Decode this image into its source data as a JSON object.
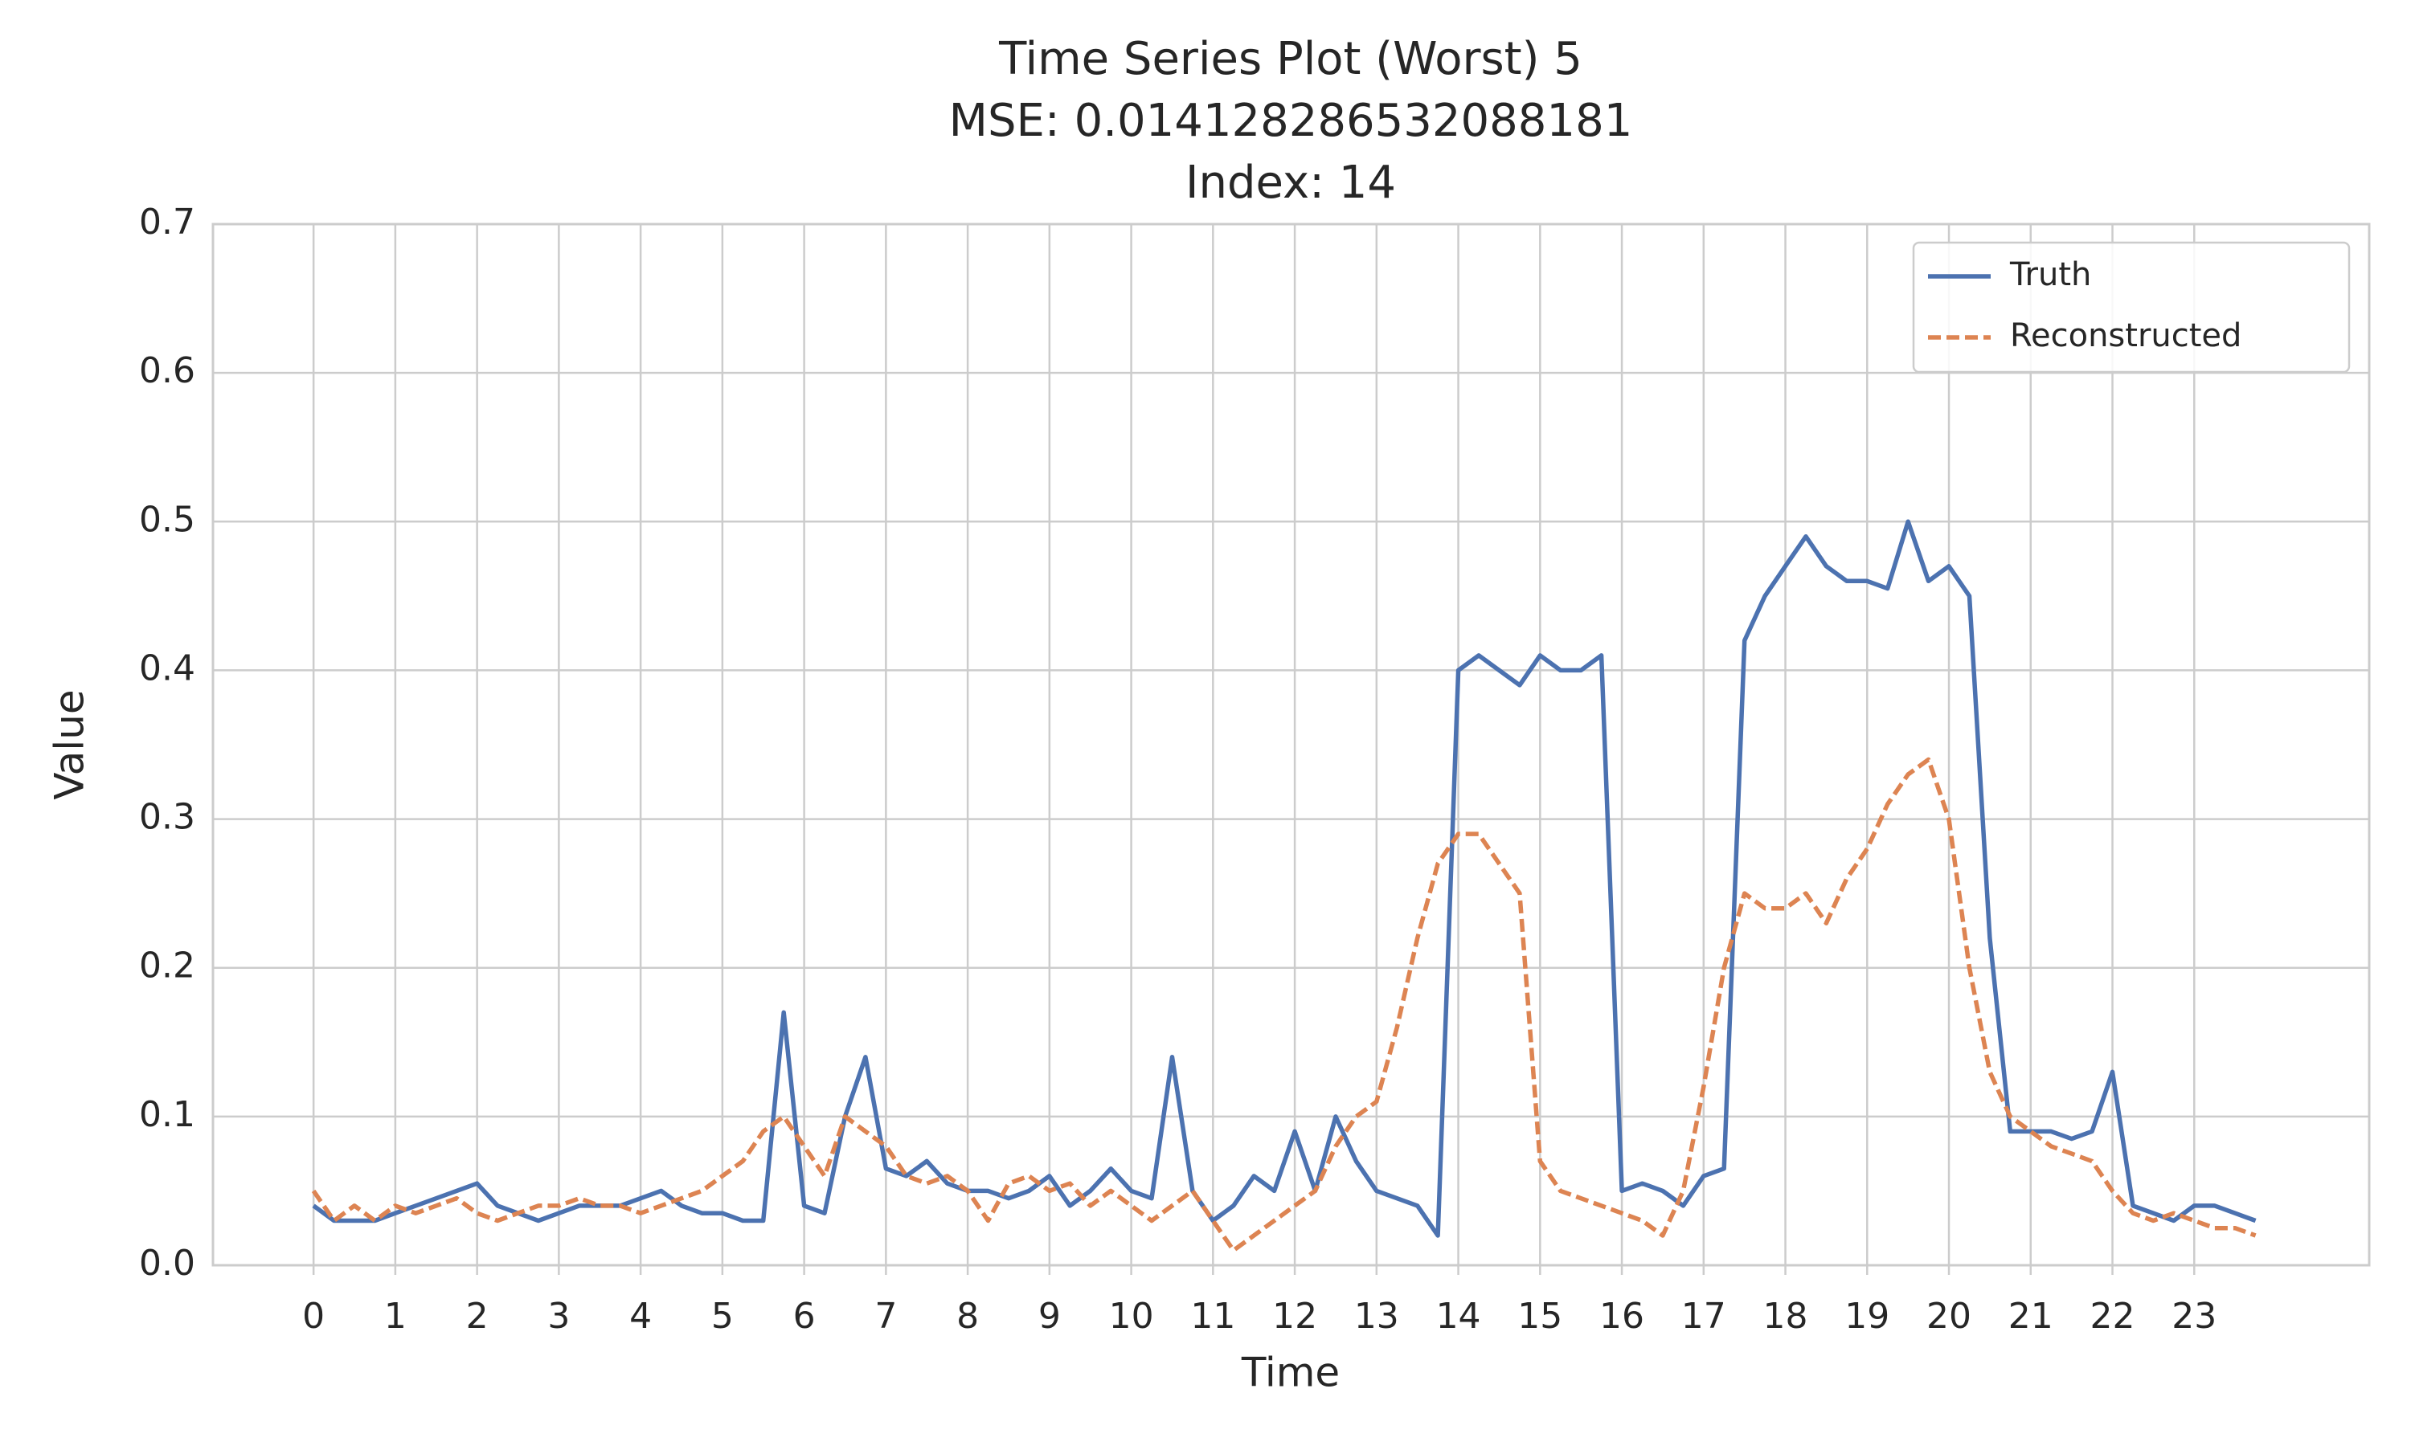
{
  "chart_data": {
    "type": "line",
    "title": "Time Series Plot (Worst) 5",
    "subtitle": "MSE: 0.014128286532088181",
    "subtitle2": "Index: 14",
    "x_label": "Time",
    "y_label": "Value",
    "x": [
      0,
      0.25,
      0.5,
      0.75,
      1,
      1.25,
      1.5,
      1.75,
      2,
      2.25,
      2.5,
      2.75,
      3,
      3.25,
      3.5,
      3.75,
      4,
      4.25,
      4.5,
      4.75,
      5,
      5.25,
      5.5,
      5.75,
      6,
      6.25,
      6.5,
      6.75,
      7,
      7.25,
      7.5,
      7.75,
      8,
      8.25,
      8.5,
      8.75,
      9,
      9.25,
      9.5,
      9.75,
      10,
      10.25,
      10.5,
      10.75,
      11,
      11.25,
      11.5,
      11.75,
      12,
      12.25,
      12.5,
      12.75,
      13,
      13.25,
      13.5,
      13.75,
      14,
      14.25,
      14.5,
      14.75,
      15,
      15.25,
      15.5,
      15.75,
      16,
      16.25,
      16.5,
      16.75,
      17,
      17.25,
      17.5,
      17.75,
      18,
      18.25,
      18.5,
      18.75,
      19,
      19.25,
      19.5,
      19.75,
      20,
      20.25,
      20.5,
      20.75,
      21,
      21.25,
      21.5,
      21.75,
      22,
      22.25,
      22.5,
      22.75,
      23,
      23.25,
      23.5,
      23.75
    ],
    "series": [
      {
        "name": "Truth",
        "color": "#4c72b0",
        "dashed": false,
        "values": [
          0.04,
          0.03,
          0.03,
          0.03,
          0.035,
          0.04,
          0.045,
          0.05,
          0.055,
          0.04,
          0.035,
          0.03,
          0.035,
          0.04,
          0.04,
          0.04,
          0.045,
          0.05,
          0.04,
          0.035,
          0.035,
          0.03,
          0.03,
          0.17,
          0.04,
          0.035,
          0.1,
          0.14,
          0.065,
          0.06,
          0.07,
          0.055,
          0.05,
          0.05,
          0.045,
          0.05,
          0.06,
          0.04,
          0.05,
          0.065,
          0.05,
          0.045,
          0.14,
          0.05,
          0.03,
          0.04,
          0.06,
          0.05,
          0.09,
          0.05,
          0.1,
          0.07,
          0.05,
          0.045,
          0.04,
          0.02,
          0.4,
          0.41,
          0.4,
          0.39,
          0.41,
          0.4,
          0.4,
          0.41,
          0.05,
          0.055,
          0.05,
          0.04,
          0.06,
          0.065,
          0.42,
          0.45,
          0.47,
          0.49,
          0.47,
          0.46,
          0.46,
          0.455,
          0.5,
          0.46,
          0.47,
          0.45,
          0.22,
          0.09,
          0.09,
          0.09,
          0.085,
          0.09,
          0.13,
          0.04,
          0.035,
          0.03,
          0.04,
          0.04,
          0.035,
          0.03
        ]
      },
      {
        "name": "Reconstructed",
        "color": "#dd8452",
        "dashed": true,
        "values": [
          0.05,
          0.03,
          0.04,
          0.03,
          0.04,
          0.035,
          0.04,
          0.045,
          0.035,
          0.03,
          0.035,
          0.04,
          0.04,
          0.045,
          0.04,
          0.04,
          0.035,
          0.04,
          0.045,
          0.05,
          0.06,
          0.07,
          0.09,
          0.1,
          0.08,
          0.06,
          0.1,
          0.09,
          0.08,
          0.06,
          0.055,
          0.06,
          0.05,
          0.03,
          0.055,
          0.06,
          0.05,
          0.055,
          0.04,
          0.05,
          0.04,
          0.03,
          0.04,
          0.05,
          0.03,
          0.01,
          0.02,
          0.03,
          0.04,
          0.05,
          0.08,
          0.1,
          0.11,
          0.16,
          0.22,
          0.27,
          0.29,
          0.29,
          0.27,
          0.25,
          0.07,
          0.05,
          0.045,
          0.04,
          0.035,
          0.03,
          0.02,
          0.05,
          0.12,
          0.2,
          0.25,
          0.24,
          0.24,
          0.25,
          0.23,
          0.26,
          0.28,
          0.31,
          0.33,
          0.34,
          0.3,
          0.2,
          0.13,
          0.1,
          0.09,
          0.08,
          0.075,
          0.07,
          0.05,
          0.035,
          0.03,
          0.035,
          0.03,
          0.025,
          0.025,
          0.02
        ]
      }
    ],
    "xlim": [
      -1.23,
      25.14
    ],
    "xticks": [
      0,
      1,
      2,
      3,
      4,
      5,
      6,
      7,
      8,
      9,
      10,
      11,
      12,
      13,
      14,
      15,
      16,
      17,
      18,
      19,
      20,
      21,
      22,
      23
    ],
    "ylim": [
      0,
      0.7
    ],
    "yticks": [
      {
        "value": 0,
        "label": "0.0"
      },
      0.1,
      0.2,
      0.3,
      0.4,
      0.5,
      0.6,
      0.7
    ],
    "grid": true,
    "legend": "upper right"
  }
}
